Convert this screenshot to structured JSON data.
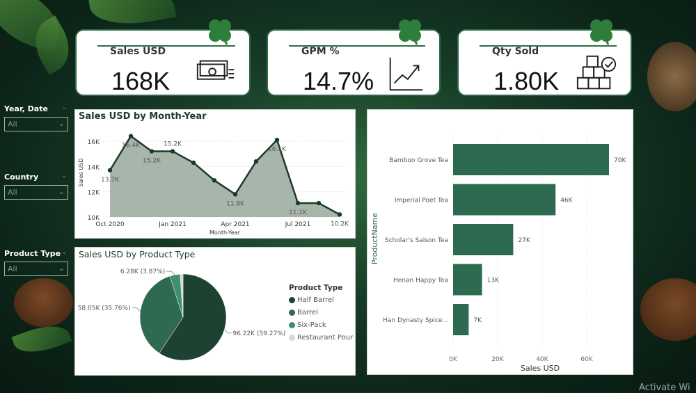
{
  "kpis": [
    {
      "label": "Sales USD",
      "value": "168K",
      "icon": "money-icon"
    },
    {
      "label": "GPM %",
      "value": "14.7%",
      "icon": "trend-up-chart-icon"
    },
    {
      "label": "Qty Sold",
      "value": "1.80K",
      "icon": "boxes-check-icon"
    }
  ],
  "slicers": [
    {
      "label": "Year, Date",
      "value": "All"
    },
    {
      "label": "Country",
      "value": "All"
    },
    {
      "label": "Product Type",
      "value": "All"
    }
  ],
  "colors": {
    "accent": "#2d6b45",
    "bar": "#2e6a50",
    "area": "#a7b5ab",
    "line": "#1c3a2b"
  },
  "chart_data": [
    {
      "type": "area",
      "title": "Sales USD by Month-Year",
      "xlabel": "Month-Year",
      "ylabel": "Sales USD",
      "x": [
        "Oct 2020",
        "Nov 2020",
        "Dec 2020",
        "Jan 2021",
        "Feb 2021",
        "Mar 2021",
        "Apr 2021",
        "May 2021",
        "Jun 2021",
        "Jul 2021",
        "Aug 2021",
        "Sep 2021"
      ],
      "xticks": [
        "Oct 2020",
        "Jan 2021",
        "Apr 2021",
        "Jul 2021"
      ],
      "yticks": [
        "10K",
        "12K",
        "14K",
        "16K"
      ],
      "ylim": [
        10000,
        16000
      ],
      "values": [
        13700,
        16400,
        15200,
        15200,
        14300,
        12900,
        11800,
        14400,
        16100,
        11100,
        11100,
        10200
      ],
      "data_labels": [
        "13.7K",
        "16.4K",
        "15.2K",
        "15.2K",
        "",
        "",
        "11.8K",
        "",
        "16.1K",
        "11.1K",
        "",
        "10.2K"
      ]
    },
    {
      "type": "pie",
      "title": "Sales USD by Product Type",
      "legend_title": "Product Type",
      "legend": "right",
      "slices": [
        {
          "name": "Half Barrel",
          "value": 96.22,
          "label": "96.22K (59.27%)",
          "color": "#1d4232"
        },
        {
          "name": "Barrel",
          "value": 58.05,
          "label": "58.05K (35.76%)",
          "color": "#2f6a50"
        },
        {
          "name": "Six-Pack",
          "value": 6.28,
          "label": "6.28K (3.87%)",
          "color": "#3f9070"
        },
        {
          "name": "Restaurant Pour",
          "value": 1.79,
          "label": "",
          "color": "#d5d8d6"
        }
      ]
    },
    {
      "type": "bar",
      "orientation": "horizontal",
      "xlabel": "Sales USD",
      "ylabel": "ProductName",
      "categories": [
        "Bamboo Grove Tea",
        "Imperial Poet Tea",
        "Scholar's Saison Tea",
        "Henan Happy Tea",
        "Han Dynasty Spice..."
      ],
      "values": [
        70000,
        46000,
        27000,
        13000,
        7000
      ],
      "data_labels": [
        "70K",
        "46K",
        "27K",
        "13K",
        "7K"
      ],
      "xticks": [
        "0K",
        "20K",
        "40K",
        "60K"
      ],
      "xlim": [
        0,
        70000
      ]
    }
  ],
  "watermark": "Activate Wi"
}
